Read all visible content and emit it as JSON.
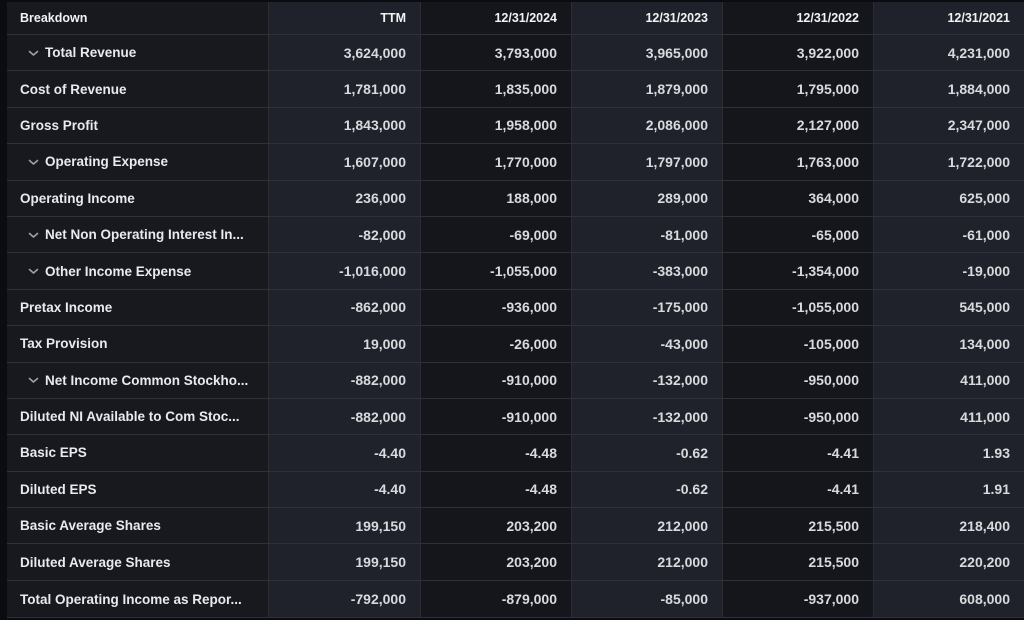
{
  "table": {
    "columns": [
      {
        "label": "Breakdown"
      },
      {
        "label": "TTM"
      },
      {
        "label": "12/31/2024"
      },
      {
        "label": "12/31/2023"
      },
      {
        "label": "12/31/2022"
      },
      {
        "label": "12/31/2021"
      }
    ],
    "rows": [
      {
        "label": "Total Revenue",
        "expandable": true,
        "values": [
          "3,624,000",
          "3,793,000",
          "3,965,000",
          "3,922,000",
          "4,231,000"
        ]
      },
      {
        "label": "Cost of Revenue",
        "expandable": false,
        "values": [
          "1,781,000",
          "1,835,000",
          "1,879,000",
          "1,795,000",
          "1,884,000"
        ]
      },
      {
        "label": "Gross Profit",
        "expandable": false,
        "values": [
          "1,843,000",
          "1,958,000",
          "2,086,000",
          "2,127,000",
          "2,347,000"
        ]
      },
      {
        "label": "Operating Expense",
        "expandable": true,
        "values": [
          "1,607,000",
          "1,770,000",
          "1,797,000",
          "1,763,000",
          "1,722,000"
        ]
      },
      {
        "label": "Operating Income",
        "expandable": false,
        "values": [
          "236,000",
          "188,000",
          "289,000",
          "364,000",
          "625,000"
        ]
      },
      {
        "label": "Net Non Operating Interest In...",
        "expandable": true,
        "values": [
          "-82,000",
          "-69,000",
          "-81,000",
          "-65,000",
          "-61,000"
        ]
      },
      {
        "label": "Other Income Expense",
        "expandable": true,
        "values": [
          "-1,016,000",
          "-1,055,000",
          "-383,000",
          "-1,354,000",
          "-19,000"
        ]
      },
      {
        "label": "Pretax Income",
        "expandable": false,
        "values": [
          "-862,000",
          "-936,000",
          "-175,000",
          "-1,055,000",
          "545,000"
        ]
      },
      {
        "label": "Tax Provision",
        "expandable": false,
        "values": [
          "19,000",
          "-26,000",
          "-43,000",
          "-105,000",
          "134,000"
        ]
      },
      {
        "label": "Net Income Common Stockho...",
        "expandable": true,
        "values": [
          "-882,000",
          "-910,000",
          "-132,000",
          "-950,000",
          "411,000"
        ]
      },
      {
        "label": "Diluted NI Available to Com Stoc...",
        "expandable": false,
        "values": [
          "-882,000",
          "-910,000",
          "-132,000",
          "-950,000",
          "411,000"
        ]
      },
      {
        "label": "Basic EPS",
        "expandable": false,
        "values": [
          "-4.40",
          "-4.48",
          "-0.62",
          "-4.41",
          "1.93"
        ]
      },
      {
        "label": "Diluted EPS",
        "expandable": false,
        "values": [
          "-4.40",
          "-4.48",
          "-0.62",
          "-4.41",
          "1.91"
        ]
      },
      {
        "label": "Basic Average Shares",
        "expandable": false,
        "values": [
          "199,150",
          "203,200",
          "212,000",
          "215,500",
          "218,400"
        ]
      },
      {
        "label": "Diluted Average Shares",
        "expandable": false,
        "values": [
          "199,150",
          "203,200",
          "212,000",
          "215,500",
          "220,200"
        ]
      },
      {
        "label": "Total Operating Income as Repor...",
        "expandable": false,
        "values": [
          "-792,000",
          "-879,000",
          "-85,000",
          "-937,000",
          "608,000"
        ]
      }
    ]
  },
  "icons": {
    "expand": "chevron-down-icon"
  },
  "colors": {
    "page_background": "#0a0c0f",
    "first_column": "#17191f",
    "light_column": "#1f222a",
    "dark_column": "#14161c",
    "row_border": "#2e3138",
    "header_text": "#f0f2f4",
    "value_text": "#d8dadd",
    "chevron": "#9aa2ab"
  }
}
